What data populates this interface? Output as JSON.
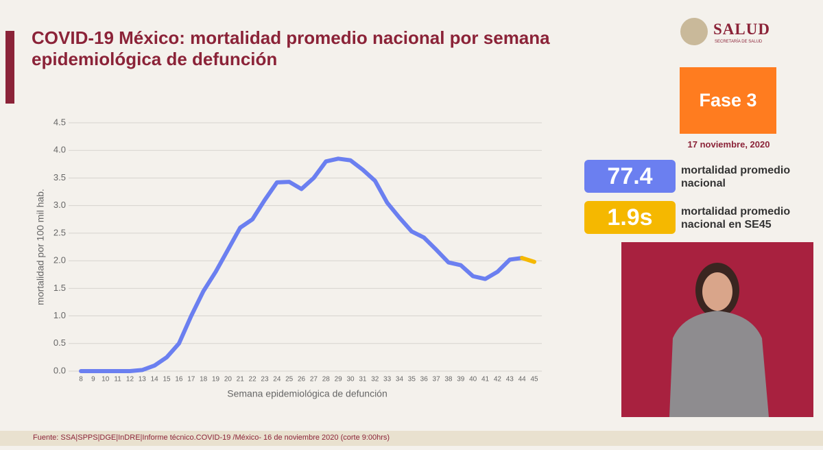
{
  "chart_data": {
    "type": "line",
    "title": "COVID-19 México: mortalidad promedio nacional por semana epidemiológica de defunción",
    "xlabel": "Semana epidemiológica de defunción",
    "ylabel": "mortalidad por 100 mil hab.",
    "categories": [
      "8",
      "9",
      "10",
      "11",
      "12",
      "13",
      "14",
      "15",
      "16",
      "17",
      "18",
      "19",
      "20",
      "21",
      "22",
      "23",
      "24",
      "25",
      "26",
      "27",
      "28",
      "29",
      "30",
      "31",
      "32",
      "33",
      "34",
      "35",
      "36",
      "37",
      "38",
      "39",
      "40",
      "41",
      "42",
      "43",
      "44",
      "45"
    ],
    "series": [
      {
        "color": "#6b7ff0",
        "values": [
          0,
          0,
          0,
          0,
          0,
          0.02,
          0.1,
          0.25,
          0.5,
          1.0,
          1.45,
          1.8,
          2.2,
          2.6,
          2.75,
          3.1,
          3.42,
          3.43,
          3.3,
          3.5,
          3.8,
          3.85,
          3.82,
          3.65,
          3.45,
          3.05,
          2.78,
          2.53,
          2.42,
          2.2,
          1.97,
          1.92,
          1.72,
          1.67,
          1.8,
          2.02,
          2.05,
          null
        ]
      },
      {
        "color": "#f5b800",
        "values": [
          null,
          null,
          null,
          null,
          null,
          null,
          null,
          null,
          null,
          null,
          null,
          null,
          null,
          null,
          null,
          null,
          null,
          null,
          null,
          null,
          null,
          null,
          null,
          null,
          null,
          null,
          null,
          null,
          null,
          null,
          null,
          null,
          null,
          null,
          null,
          null,
          2.05,
          1.98
        ]
      }
    ],
    "ylim": [
      0,
      4.5
    ],
    "yticks": [
      {
        "value": 0,
        "label": "0.0"
      },
      0.5,
      {
        "value": 1,
        "label": "1.0"
      },
      1.5,
      {
        "value": 2,
        "label": "2.0"
      },
      2.5,
      {
        "value": 3,
        "label": "3.0"
      },
      3.5,
      {
        "value": 4,
        "label": "4.0"
      },
      4.5
    ],
    "grid": true,
    "source": "Fuente: SSA|SPPS|DGE|InDRE|Informe técnico.COVID-19 /México- 16 de noviembre  2020 (corte 9:00hrs)"
  },
  "header": {
    "logo": "SALUD",
    "logo_sub": "SECRETARÍA DE SALUD",
    "phase": "Fase 3",
    "date": "17 noviembre, 2020"
  },
  "stats": [
    {
      "value": "77.4",
      "label": "mortalidad promedio nacional"
    },
    {
      "value": "1.9s",
      "label": "mortalidad promedio nacional en SE45"
    }
  ]
}
